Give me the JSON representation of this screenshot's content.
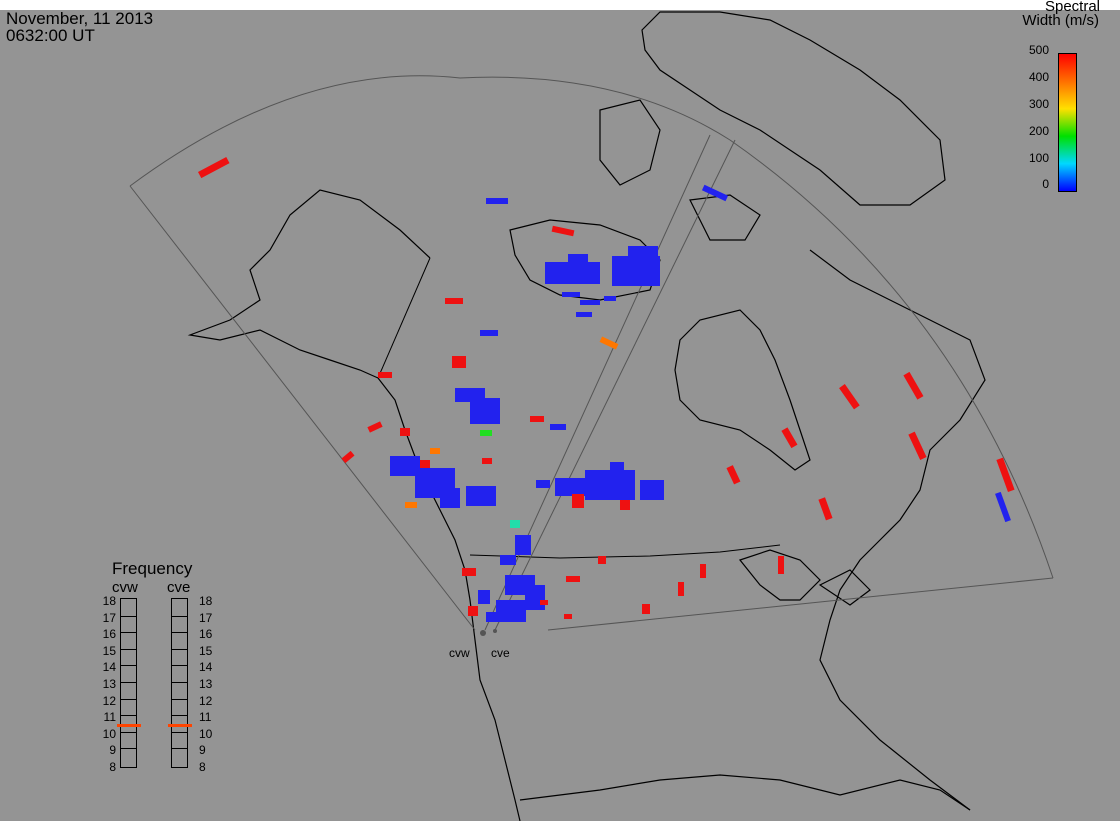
{
  "header": {
    "date": "November, 11 2013",
    "time": "0632:00 UT"
  },
  "colorbar": {
    "title_line1": "Spectral",
    "title_line2": "Width (m/s)",
    "ticks": [
      "500",
      "400",
      "300",
      "200",
      "100",
      "0"
    ],
    "colors": [
      "#0000ff",
      "#00d8ff",
      "#00e000",
      "#ffe000",
      "#ff7000",
      "#ff0000"
    ]
  },
  "frequency": {
    "title": "Frequency",
    "radars": [
      {
        "name": "cvw",
        "selected": 11
      },
      {
        "name": "cve",
        "selected": 11
      }
    ],
    "labels": [
      "18",
      "17",
      "16",
      "15",
      "14",
      "13",
      "12",
      "11",
      "10",
      "9",
      "8"
    ],
    "marker_color": "#ff4400"
  },
  "radar_sites": [
    {
      "name": "cvw"
    },
    {
      "name": "cve"
    }
  ],
  "colors": {
    "background": "#949494",
    "coast": "#000000",
    "fov": "#555555"
  }
}
